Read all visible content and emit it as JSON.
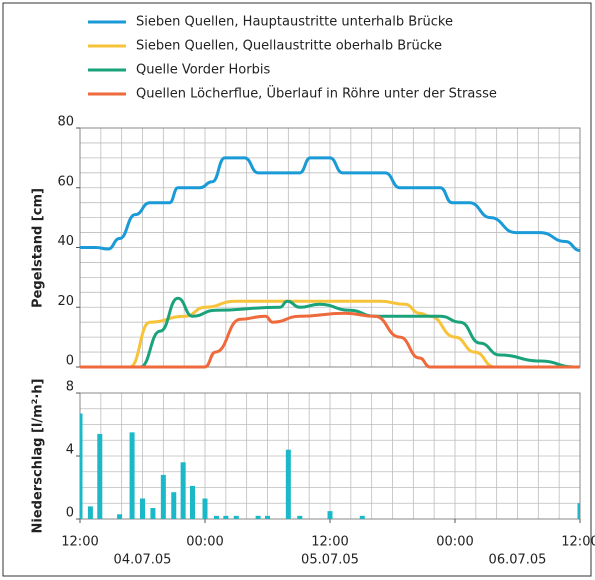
{
  "chart_data": [
    {
      "type": "line",
      "ylabel": "Pegelstand [cm]",
      "xlim": [
        0,
        48
      ],
      "xgrid_step": 2,
      "ylim": [
        0,
        80
      ],
      "yticks": [
        0,
        20,
        40,
        60,
        80
      ],
      "ygrid_step": 5,
      "grid": true,
      "legend": "top",
      "series": [
        {
          "name": "Sieben Quellen, Hauptaustritte unterhalb Brücke",
          "color": "#1a9ad6",
          "x": [
            0,
            1.5,
            2.7,
            3.8,
            5.3,
            6.7,
            8.6,
            9.4,
            11.5,
            12.7,
            13.9,
            15.8,
            17.1,
            21.1,
            22.1,
            24,
            25.2,
            29.3,
            30.7,
            34.6,
            35.7,
            37.4,
            39.4,
            41.8,
            44.2,
            46.6,
            48
          ],
          "values": [
            40,
            40,
            39.5,
            43,
            51,
            55,
            55,
            60,
            60,
            62,
            70,
            70,
            65,
            65,
            70,
            70,
            65,
            65,
            60,
            60,
            55,
            55,
            50,
            45,
            45,
            42,
            39
          ]
        },
        {
          "name": "Sieben Quellen, Quellaustritte oberhalb Brücke",
          "color": "#f7c33a",
          "x": [
            0,
            4.8,
            6.7,
            10.1,
            12,
            14.9,
            28.8,
            31.2,
            32.6,
            33.6,
            36,
            37.9,
            39.8,
            48
          ],
          "values": [
            0,
            0,
            15,
            17,
            20,
            22,
            22,
            21,
            18,
            17,
            10,
            5,
            0,
            0
          ]
        },
        {
          "name": "Quelle Vorder Horbis",
          "color": "#1aa37a",
          "x": [
            0,
            5.8,
            7.7,
            9.4,
            10.8,
            13,
            19.2,
            19.9,
            21.1,
            23,
            25.9,
            28.3,
            34.6,
            36.5,
            38.4,
            40.3,
            44.2,
            47.5,
            48
          ],
          "values": [
            0,
            0,
            12,
            23,
            17,
            19,
            20,
            22,
            20,
            21,
            19,
            17,
            17,
            15,
            8,
            4,
            2,
            0,
            0
          ]
        },
        {
          "name": "Quellen Löcherflue, Überlauf in Röhre unter der Strasse",
          "color": "#ee6a3c",
          "x": [
            0,
            12,
            13,
            15.4,
            17.8,
            18.5,
            21.1,
            25.4,
            28.3,
            30.7,
            32.6,
            33.6,
            48
          ],
          "values": [
            0,
            0,
            5,
            16,
            17,
            15,
            17,
            18,
            17,
            10,
            3,
            0,
            0
          ]
        }
      ]
    },
    {
      "type": "bar",
      "ylabel": "Niederschlag [l/m²·h]",
      "color": "#1bb8c8",
      "xlim": [
        0,
        48
      ],
      "xgrid_step": 2,
      "xticks": [
        {
          "value": 0,
          "label": "12:00"
        },
        {
          "value": 12,
          "label": "00:00"
        },
        {
          "value": 24,
          "label": "12:00"
        },
        {
          "value": 36,
          "label": "00:00"
        },
        {
          "value": 48,
          "label": "12:00"
        }
      ],
      "dates": [
        {
          "value": 6,
          "label": "04.07.05"
        },
        {
          "value": 24,
          "label": "05.07.05"
        },
        {
          "value": 42,
          "label": "06.07.05"
        }
      ],
      "ylim": [
        0,
        8
      ],
      "yticks": [
        0,
        4,
        8
      ],
      "ygrid_step": 1,
      "grid": true,
      "x": [
        0,
        1,
        1.9,
        3.8,
        5,
        6,
        7,
        8,
        9,
        9.9,
        10.8,
        12,
        13.1,
        14,
        15,
        17.1,
        18,
        20,
        21.1,
        24,
        27.1,
        48
      ],
      "values": [
        6.7,
        0.8,
        5.4,
        0.3,
        5.5,
        1.3,
        0.7,
        2.8,
        1.7,
        3.6,
        2.1,
        1.3,
        0.2,
        0.2,
        0.2,
        0.2,
        0.2,
        4.4,
        0.2,
        0.5,
        0.2,
        1
      ]
    }
  ]
}
